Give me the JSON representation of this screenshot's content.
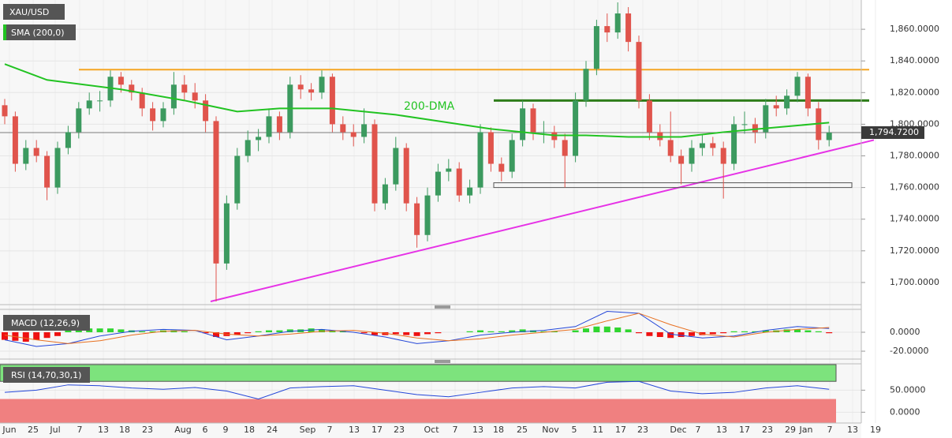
{
  "chart_data": {
    "type": "candlestick",
    "title": "XAU/USD",
    "ylim": [
      1686.5,
      1878.5
    ],
    "yticks": [
      {
        "value": 1700,
        "label": "1,700.0000"
      },
      {
        "value": 1720,
        "label": "1,720.0000"
      },
      {
        "value": 1740,
        "label": "1,740.0000"
      },
      {
        "value": 1760,
        "label": "1,760.0000"
      },
      {
        "value": 1780,
        "label": "1,780.0000"
      },
      {
        "value": 1800,
        "label": "1,800.0000"
      },
      {
        "value": 1820,
        "label": "1,820.0000"
      },
      {
        "value": 1840,
        "label": "1,840.0000"
      },
      {
        "value": 1860,
        "label": "1,860.0000"
      }
    ],
    "last_price": {
      "value": 1794.72,
      "label": "1,794.7200"
    },
    "x_labels": [
      "Jun",
      "25",
      "Jul",
      "7",
      "13",
      "18",
      "23",
      "Aug",
      "6",
      "9",
      "18",
      "24",
      "Sep",
      "7",
      "13",
      "17",
      "23",
      "Oct",
      "7",
      "13",
      "18",
      "25",
      "Nov",
      "5",
      "11",
      "17",
      "23",
      "Dec",
      "7",
      "13",
      "17",
      "23",
      "29",
      "Jan",
      "7",
      "13",
      "19"
    ],
    "up_color": "#3c9a5f",
    "down_color": "#e0544c",
    "candles": [
      [
        1812,
        1816,
        1800,
        1805
      ],
      [
        1805,
        1808,
        1770,
        1775
      ],
      [
        1775,
        1790,
        1771,
        1785
      ],
      [
        1785,
        1790,
        1776,
        1780
      ],
      [
        1780,
        1783,
        1752,
        1760
      ],
      [
        1760,
        1789,
        1756,
        1785
      ],
      [
        1785,
        1799,
        1781,
        1795
      ],
      [
        1795,
        1814,
        1791,
        1810
      ],
      [
        1810,
        1820,
        1806,
        1815
      ],
      [
        1815,
        1821,
        1808,
        1815
      ],
      [
        1815,
        1834,
        1811,
        1830
      ],
      [
        1830,
        1833,
        1820,
        1825
      ],
      [
        1825,
        1828,
        1815,
        1820
      ],
      [
        1820,
        1823,
        1805,
        1810
      ],
      [
        1810,
        1814,
        1796,
        1802
      ],
      [
        1802,
        1814,
        1798,
        1810
      ],
      [
        1810,
        1833,
        1806,
        1825
      ],
      [
        1825,
        1831,
        1815,
        1820
      ],
      [
        1820,
        1826,
        1810,
        1815
      ],
      [
        1815,
        1819,
        1795,
        1802
      ],
      [
        1802,
        1805,
        1688,
        1712
      ],
      [
        1712,
        1755,
        1708,
        1750
      ],
      [
        1750,
        1785,
        1746,
        1780
      ],
      [
        1780,
        1796,
        1776,
        1790
      ],
      [
        1790,
        1797,
        1783,
        1792
      ],
      [
        1792,
        1810,
        1788,
        1805
      ],
      [
        1805,
        1808,
        1790,
        1795
      ],
      [
        1795,
        1830,
        1791,
        1825
      ],
      [
        1825,
        1831,
        1816,
        1822
      ],
      [
        1822,
        1826,
        1815,
        1820
      ],
      [
        1820,
        1834,
        1816,
        1830
      ],
      [
        1830,
        1832,
        1795,
        1800
      ],
      [
        1800,
        1805,
        1790,
        1795
      ],
      [
        1795,
        1800,
        1786,
        1792
      ],
      [
        1792,
        1810,
        1788,
        1800
      ],
      [
        1800,
        1803,
        1745,
        1750
      ],
      [
        1750,
        1766,
        1746,
        1762
      ],
      [
        1762,
        1792,
        1758,
        1785
      ],
      [
        1785,
        1788,
        1745,
        1750
      ],
      [
        1750,
        1754,
        1722,
        1730
      ],
      [
        1730,
        1760,
        1726,
        1755
      ],
      [
        1755,
        1775,
        1751,
        1770
      ],
      [
        1770,
        1778,
        1764,
        1772
      ],
      [
        1772,
        1776,
        1751,
        1755
      ],
      [
        1755,
        1765,
        1750,
        1760
      ],
      [
        1760,
        1800,
        1756,
        1795
      ],
      [
        1795,
        1798,
        1770,
        1775
      ],
      [
        1775,
        1779,
        1764,
        1770
      ],
      [
        1770,
        1794,
        1766,
        1790
      ],
      [
        1790,
        1815,
        1786,
        1810
      ],
      [
        1810,
        1813,
        1790,
        1795
      ],
      [
        1795,
        1802,
        1788,
        1795
      ],
      [
        1795,
        1799,
        1785,
        1790
      ],
      [
        1790,
        1794,
        1760,
        1780
      ],
      [
        1780,
        1820,
        1776,
        1815
      ],
      [
        1815,
        1840,
        1811,
        1835
      ],
      [
        1835,
        1866,
        1831,
        1862
      ],
      [
        1862,
        1870,
        1852,
        1858
      ],
      [
        1858,
        1877,
        1854,
        1870
      ],
      [
        1870,
        1874,
        1846,
        1852
      ],
      [
        1852,
        1856,
        1810,
        1815
      ],
      [
        1815,
        1819,
        1790,
        1795
      ],
      [
        1795,
        1800,
        1786,
        1790
      ],
      [
        1790,
        1808,
        1776,
        1780
      ],
      [
        1780,
        1784,
        1762,
        1775
      ],
      [
        1775,
        1790,
        1770,
        1785
      ],
      [
        1785,
        1793,
        1780,
        1788
      ],
      [
        1788,
        1792,
        1780,
        1785
      ],
      [
        1785,
        1789,
        1753,
        1775
      ],
      [
        1775,
        1805,
        1771,
        1800
      ],
      [
        1800,
        1808,
        1794,
        1800
      ],
      [
        1800,
        1804,
        1788,
        1795
      ],
      [
        1795,
        1816,
        1791,
        1812
      ],
      [
        1812,
        1818,
        1805,
        1810
      ],
      [
        1810,
        1822,
        1806,
        1818
      ],
      [
        1818,
        1833,
        1814,
        1830
      ],
      [
        1830,
        1832,
        1805,
        1810
      ],
      [
        1810,
        1814,
        1784,
        1790
      ],
      [
        1790,
        1799,
        1786,
        1794.72
      ]
    ],
    "sma": {
      "name": "SMA (200,0)",
      "annotation": "200-DMA",
      "color": "#22c322",
      "x": [
        0,
        4,
        11,
        17,
        22,
        26,
        31,
        37,
        41,
        46,
        52,
        55,
        59,
        64,
        68,
        73,
        78
      ],
      "values": [
        1838,
        1828,
        1822,
        1815,
        1808,
        1810,
        1810,
        1806,
        1802,
        1797,
        1793,
        1793,
        1792,
        1792,
        1795,
        1798,
        1801
      ]
    },
    "resistance": {
      "value": 1834.5,
      "color": "#f5a623"
    },
    "resistance2": {
      "value": 1815,
      "color": "#2e7d1a"
    },
    "support_line": {
      "values": [
        1688,
        1790
      ],
      "color": "#e632e6"
    },
    "support_box": {
      "values": [
        1760,
        1763
      ]
    },
    "macd": {
      "name": "MACD (12,26,9)",
      "ylim": [
        -28.3,
        23.3
      ],
      "yticks": [
        {
          "value": 0,
          "label": "0.0000"
        },
        {
          "value": -20,
          "label": "-20.0000"
        }
      ],
      "histogram": [
        -8,
        -9,
        -10,
        -8,
        -6,
        -4,
        2,
        3,
        4,
        4,
        4,
        3,
        2,
        1,
        1,
        2,
        2,
        1,
        0,
        -1,
        -5,
        -4,
        -3,
        -1,
        1,
        2,
        2,
        3,
        3,
        4,
        3,
        2,
        1,
        0,
        -1,
        -3,
        -3,
        -2,
        -3,
        -4,
        -2,
        -1,
        0,
        0,
        1,
        2,
        1,
        1,
        2,
        3,
        2,
        1,
        1,
        0,
        2,
        4,
        6,
        6,
        5,
        3,
        -1,
        -4,
        -5,
        -6,
        -5,
        -4,
        -3,
        -2,
        -1,
        1,
        1,
        1,
        2,
        2,
        3,
        3,
        2,
        1,
        -1
      ],
      "x": [
        0,
        3,
        6,
        9,
        12,
        15,
        18,
        21,
        24,
        27,
        30,
        33,
        36,
        39,
        42,
        45,
        48,
        51,
        54,
        57,
        60,
        63,
        66,
        69,
        72,
        75,
        78
      ],
      "macd_line": {
        "color": "#2446d8",
        "values": [
          -8,
          -15,
          -12,
          -4,
          1,
          3,
          2,
          -8,
          -4,
          1,
          3,
          0,
          -5,
          -12,
          -9,
          -3,
          0,
          2,
          6,
          22,
          20,
          -2,
          -6,
          -4,
          2,
          6,
          4
        ]
      },
      "signal_line": {
        "color": "#e87020",
        "values": [
          -3,
          -8,
          -12,
          -9,
          -3,
          1,
          2,
          -2,
          -4,
          -2,
          1,
          2,
          -1,
          -6,
          -9,
          -7,
          -3,
          0,
          3,
          12,
          20,
          8,
          -2,
          -5,
          0,
          3,
          5
        ]
      }
    },
    "rsi": {
      "name": "RSI (14,70,30,1)",
      "ylim": [
        -24.5,
        108
      ],
      "levels": [
        30,
        70
      ],
      "yticks": [
        {
          "value": 50,
          "label": "50.0000"
        },
        {
          "value": 0,
          "label": "0.0000"
        }
      ],
      "color": "#2446d8",
      "x": [
        0,
        3,
        6,
        9,
        12,
        15,
        18,
        21,
        24,
        27,
        30,
        33,
        36,
        39,
        42,
        45,
        48,
        51,
        54,
        57,
        60,
        63,
        66,
        69,
        72,
        75,
        78
      ],
      "values": [
        45,
        50,
        62,
        60,
        55,
        52,
        56,
        48,
        30,
        55,
        58,
        60,
        50,
        40,
        35,
        45,
        55,
        58,
        55,
        68,
        70,
        48,
        42,
        45,
        55,
        60,
        52
      ]
    }
  }
}
